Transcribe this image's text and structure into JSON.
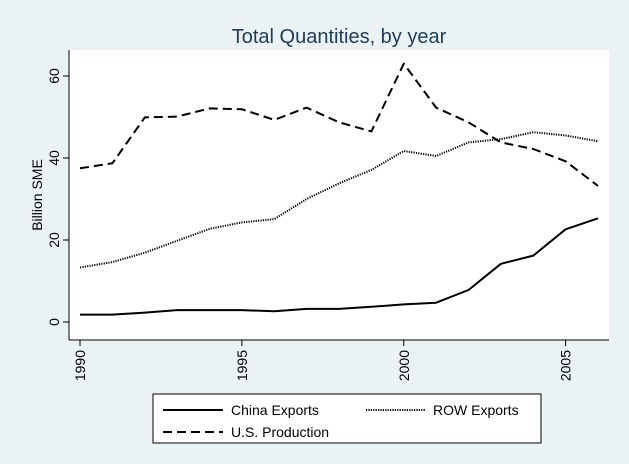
{
  "chart_data": {
    "type": "line",
    "title": "Total Quantities, by year",
    "xlabel": "",
    "ylabel": "Billion SME",
    "xlim": [
      1990,
      2006
    ],
    "ylim": [
      0,
      65
    ],
    "x_ticks": [
      1990,
      1995,
      2000,
      2005
    ],
    "y_ticks": [
      0,
      20,
      40,
      60
    ],
    "grid": false,
    "legend_position": "bottom",
    "x": [
      1990,
      1991,
      1992,
      1993,
      1994,
      1995,
      1996,
      1997,
      1998,
      1999,
      2000,
      2001,
      2002,
      2003,
      2004,
      2005,
      2006
    ],
    "series": [
      {
        "name": "China Exports",
        "style": "solid",
        "values": [
          1.8,
          1.8,
          2.3,
          2.9,
          2.9,
          2.9,
          2.6,
          3.2,
          3.2,
          3.7,
          4.3,
          4.7,
          7.8,
          14.2,
          16.2,
          22.6,
          25.3
        ]
      },
      {
        "name": "ROW Exports",
        "style": "dotted",
        "values": [
          13.3,
          14.6,
          16.9,
          19.8,
          22.7,
          24.3,
          25.1,
          30.0,
          33.8,
          37.1,
          41.7,
          40.5,
          43.8,
          44.6,
          46.3,
          45.5,
          44.1
        ]
      },
      {
        "name": "U.S. Production",
        "style": "dashed",
        "values": [
          37.5,
          38.7,
          49.9,
          50.1,
          52.1,
          51.9,
          49.3,
          52.3,
          48.7,
          46.5,
          63.0,
          52.3,
          48.7,
          43.8,
          42.2,
          39.2,
          33.2
        ]
      }
    ]
  }
}
